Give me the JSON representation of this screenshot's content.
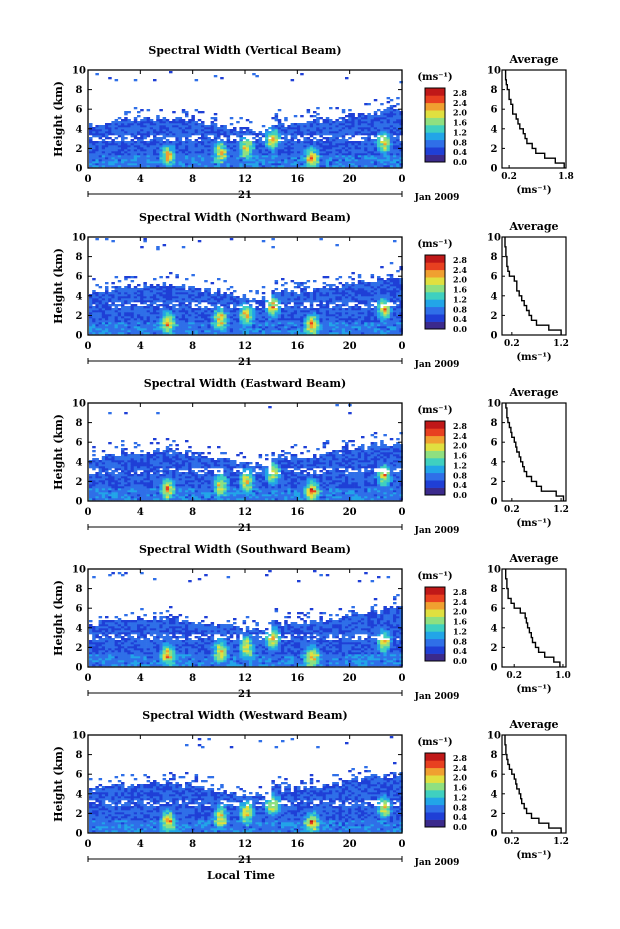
{
  "figure": {
    "colorbar_unit": "(ms⁻¹)",
    "colorbar_ticks": [
      "0.0",
      "0.4",
      "0.8",
      "1.2",
      "1.6",
      "2.0",
      "2.4",
      "2.8"
    ],
    "date_label": "Jan 2009",
    "day_label": "21",
    "x_label": "Local Time",
    "y_label": "Height (km)",
    "avg_title": "Average",
    "avg_xlabel": "(ms⁻¹)",
    "colors": [
      "#3b2a8c",
      "#1f3fd6",
      "#2f6fe8",
      "#22a5e8",
      "#3fd0c0",
      "#8fe080",
      "#e0e040",
      "#f0a030",
      "#e84020",
      "#c01818"
    ]
  },
  "chart_data": [
    {
      "type": "heatmap",
      "title": "Spectral Width (Vertical Beam)",
      "x_ticks": [
        "0",
        "4",
        "8",
        "12",
        "16",
        "20",
        "0"
      ],
      "y_ticks": [
        "0",
        "2",
        "4",
        "6",
        "8",
        "10"
      ],
      "xlim": [
        0,
        24
      ],
      "ylim": [
        0,
        10
      ],
      "cbar_range": [
        0.0,
        3.0
      ],
      "average": {
        "xlabel": "(ms⁻¹)",
        "x_ticks": [
          "0.2",
          "1.8"
        ],
        "xlim": [
          0,
          1.8
        ],
        "height_km": [
          0,
          0.5,
          1,
          1.5,
          2,
          2.5,
          3,
          3.5,
          4,
          4.5,
          5,
          5.5,
          6,
          6.5,
          7,
          7.5,
          8,
          8.5,
          9,
          9.5
        ],
        "width": [
          1.75,
          1.5,
          1.2,
          0.95,
          0.85,
          0.7,
          0.65,
          0.6,
          0.5,
          0.45,
          0.4,
          0.3,
          0.3,
          0.25,
          0.2,
          0.2,
          0.15,
          0.12,
          0.1,
          0.1
        ]
      }
    },
    {
      "type": "heatmap",
      "title": "Spectral Width (Northward Beam)",
      "x_ticks": [
        "0",
        "4",
        "8",
        "12",
        "16",
        "20",
        "0"
      ],
      "y_ticks": [
        "0",
        "2",
        "4",
        "6",
        "8",
        "10"
      ],
      "xlim": [
        0,
        24
      ],
      "ylim": [
        0,
        10
      ],
      "cbar_range": [
        0.0,
        3.0
      ],
      "average": {
        "xlabel": "(ms⁻¹)",
        "x_ticks": [
          "0.2",
          "1.2"
        ],
        "xlim": [
          0,
          1.3
        ],
        "height_km": [
          0,
          0.5,
          1,
          1.5,
          2,
          2.5,
          3,
          3.5,
          4,
          4.5,
          5,
          5.5,
          6,
          6.5,
          7,
          7.5,
          8,
          8.5,
          9,
          9.5
        ],
        "width": [
          1.2,
          0.95,
          0.7,
          0.6,
          0.55,
          0.5,
          0.45,
          0.4,
          0.35,
          0.3,
          0.3,
          0.25,
          0.15,
          0.12,
          0.1,
          0.1,
          0.08,
          0.08,
          0.06,
          0.06
        ]
      }
    },
    {
      "type": "heatmap",
      "title": "Spectral Width (Eastward Beam)",
      "x_ticks": [
        "0",
        "4",
        "8",
        "12",
        "16",
        "20",
        "0"
      ],
      "y_ticks": [
        "0",
        "2",
        "4",
        "6",
        "8",
        "10"
      ],
      "xlim": [
        0,
        24
      ],
      "ylim": [
        0,
        10
      ],
      "cbar_range": [
        0.0,
        3.0
      ],
      "average": {
        "xlabel": "(ms⁻¹)",
        "x_ticks": [
          "0.2",
          "1.2"
        ],
        "xlim": [
          0,
          1.3
        ],
        "height_km": [
          0,
          0.5,
          1,
          1.5,
          2,
          2.5,
          3,
          3.5,
          4,
          4.5,
          5,
          5.5,
          6,
          6.5,
          7,
          7.5,
          8,
          8.5,
          9,
          9.5
        ],
        "width": [
          1.25,
          1.1,
          0.8,
          0.7,
          0.6,
          0.5,
          0.45,
          0.42,
          0.38,
          0.35,
          0.3,
          0.28,
          0.25,
          0.2,
          0.18,
          0.15,
          0.12,
          0.1,
          0.1,
          0.08
        ]
      }
    },
    {
      "type": "heatmap",
      "title": "Spectral Width (Southward Beam)",
      "x_ticks": [
        "0",
        "4",
        "8",
        "12",
        "16",
        "20",
        "0"
      ],
      "y_ticks": [
        "0",
        "2",
        "4",
        "6",
        "8",
        "10"
      ],
      "xlim": [
        0,
        24
      ],
      "ylim": [
        0,
        10
      ],
      "cbar_range": [
        0.0,
        3.0
      ],
      "average": {
        "xlabel": "(ms⁻¹)",
        "x_ticks": [
          "0.2",
          "1.0"
        ],
        "xlim": [
          0,
          1.05
        ],
        "height_km": [
          0,
          0.5,
          1,
          1.5,
          2,
          2.5,
          3,
          3.5,
          4,
          4.5,
          5,
          5.5,
          6,
          6.5,
          7,
          7.5,
          8,
          8.5,
          9,
          9.5
        ],
        "width": [
          0.95,
          0.85,
          0.7,
          0.6,
          0.55,
          0.5,
          0.48,
          0.45,
          0.42,
          0.4,
          0.38,
          0.3,
          0.2,
          0.15,
          0.1,
          0.1,
          0.08,
          0.08,
          0.06,
          0.06
        ]
      }
    },
    {
      "type": "heatmap",
      "title": "Spectral Width (Westward Beam)",
      "x_ticks": [
        "0",
        "4",
        "8",
        "12",
        "16",
        "20",
        "0"
      ],
      "y_ticks": [
        "0",
        "2",
        "4",
        "6",
        "8",
        "10"
      ],
      "xlim": [
        0,
        24
      ],
      "ylim": [
        0,
        10
      ],
      "cbar_range": [
        0.0,
        3.0
      ],
      "average": {
        "xlabel": "(ms⁻¹)",
        "x_ticks": [
          "0.2",
          "1.2"
        ],
        "xlim": [
          0,
          1.3
        ],
        "height_km": [
          0,
          0.5,
          1,
          1.5,
          2,
          2.5,
          3,
          3.5,
          4,
          4.5,
          5,
          5.5,
          6,
          6.5,
          7,
          7.5,
          8,
          8.5,
          9,
          9.5
        ],
        "width": [
          1.2,
          0.95,
          0.75,
          0.6,
          0.5,
          0.45,
          0.4,
          0.38,
          0.35,
          0.3,
          0.28,
          0.25,
          0.2,
          0.15,
          0.12,
          0.1,
          0.08,
          0.08,
          0.06,
          0.06
        ]
      }
    }
  ]
}
